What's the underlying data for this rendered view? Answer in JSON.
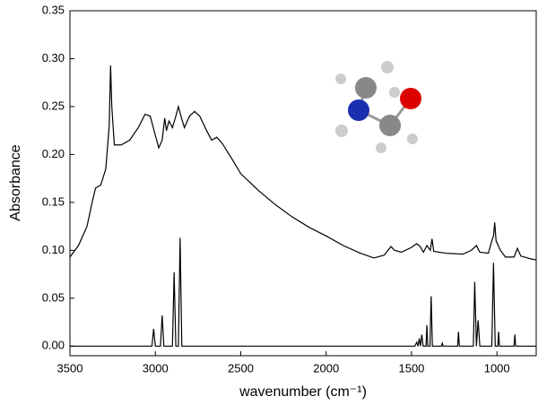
{
  "chart_data": {
    "type": "line",
    "xlabel": "wavenumber (cm⁻¹)",
    "ylabel": "Absorbance",
    "xlim": [
      3500,
      770
    ],
    "ylim": [
      -0.01,
      0.35
    ],
    "xticks": [
      3500,
      3000,
      2500,
      2000,
      1500,
      1000
    ],
    "yticks": [
      {
        "value": 0,
        "label": "0.00"
      },
      {
        "value": 0.05,
        "label": "0.05"
      },
      {
        "value": 0.1,
        "label": "0.10"
      },
      {
        "value": 0.15,
        "label": "0.15"
      },
      {
        "value": 0.2,
        "label": "0.20"
      },
      {
        "value": 0.25,
        "label": "0.25"
      },
      {
        "value": 0.3,
        "label": "0.30"
      },
      {
        "value": 0.35,
        "label": "0.35"
      }
    ],
    "series": [
      {
        "color": "#000000",
        "x": [
          3500,
          3450,
          3400,
          3370,
          3350,
          3320,
          3290,
          3270,
          3262,
          3255,
          3240,
          3200,
          3150,
          3100,
          3060,
          3030,
          3000,
          2980,
          2960,
          2945,
          2935,
          2920,
          2900,
          2880,
          2865,
          2850,
          2830,
          2800,
          2770,
          2740,
          2700,
          2670,
          2640,
          2610,
          2550,
          2500,
          2400,
          2300,
          2200,
          2100,
          2000,
          1900,
          1800,
          1720,
          1660,
          1620,
          1600,
          1560,
          1500,
          1470,
          1450,
          1430,
          1410,
          1390,
          1380,
          1370,
          1300,
          1200,
          1150,
          1120,
          1100,
          1050,
          1030,
          1020,
          1013,
          1005,
          980,
          950,
          900,
          880,
          860,
          800,
          770
        ],
        "values": [
          0.093,
          0.105,
          0.125,
          0.15,
          0.165,
          0.168,
          0.185,
          0.23,
          0.293,
          0.25,
          0.21,
          0.21,
          0.215,
          0.228,
          0.242,
          0.24,
          0.22,
          0.207,
          0.215,
          0.238,
          0.225,
          0.235,
          0.228,
          0.24,
          0.25,
          0.24,
          0.228,
          0.24,
          0.245,
          0.24,
          0.225,
          0.215,
          0.218,
          0.212,
          0.195,
          0.18,
          0.163,
          0.148,
          0.135,
          0.124,
          0.115,
          0.105,
          0.097,
          0.092,
          0.095,
          0.104,
          0.1,
          0.098,
          0.103,
          0.107,
          0.104,
          0.098,
          0.105,
          0.1,
          0.112,
          0.099,
          0.097,
          0.096,
          0.1,
          0.105,
          0.098,
          0.097,
          0.11,
          0.115,
          0.129,
          0.11,
          0.1,
          0.093,
          0.093,
          0.102,
          0.094,
          0.091,
          0.09
        ]
      },
      {
        "color": "#000000",
        "x": [
          3500,
          3020,
          3010,
          3000,
          2970,
          2960,
          2950,
          2900,
          2890,
          2880,
          2865,
          2855,
          2845,
          1480,
          1470,
          1462,
          1455,
          1448,
          1440,
          1432,
          1415,
          1410,
          1405,
          1392,
          1385,
          1378,
          1325,
          1320,
          1315,
          1230,
          1225,
          1220,
          1138,
          1130,
          1120,
          1110,
          1100,
          1030,
          1020,
          1010,
          995,
          990,
          985,
          900,
          895,
          890,
          770
        ],
        "values": [
          0,
          0,
          0.018,
          0,
          0,
          0.032,
          0,
          0,
          0.077,
          0,
          0,
          0.113,
          0,
          0,
          0.004,
          0,
          0.008,
          0,
          0.012,
          0,
          0,
          0.022,
          0,
          0,
          0.052,
          0,
          0,
          0.003,
          0,
          0,
          0.015,
          0,
          0,
          0.067,
          0,
          0.027,
          0,
          0,
          0.087,
          0,
          0,
          0.015,
          0,
          0,
          0.012,
          0,
          0
        ]
      }
    ]
  }
}
